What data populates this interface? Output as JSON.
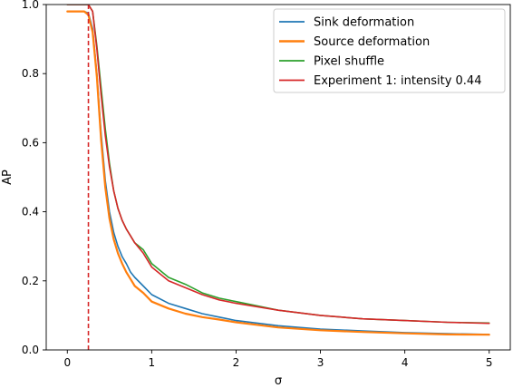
{
  "chart_data": {
    "type": "line",
    "xlabel": "σ",
    "ylabel": "AP",
    "xlim": [
      -0.25,
      5.25
    ],
    "ylim": [
      0.0,
      1.0
    ],
    "xticks": [
      0,
      1,
      2,
      3,
      4,
      5
    ],
    "xtick_labels": [
      "0",
      "1",
      "2",
      "3",
      "4",
      "5"
    ],
    "yticks": [
      0.0,
      0.2,
      0.4,
      0.6,
      0.8,
      1.0
    ],
    "ytick_labels": [
      "0.0",
      "0.2",
      "0.4",
      "0.6",
      "0.8",
      "1.0"
    ],
    "grid": false,
    "legend_position": "top-right",
    "vline": {
      "x": 0.25,
      "color": "#d62728",
      "style": "dashed"
    },
    "series": [
      {
        "name": "Sink deformation",
        "color": "#1f77b4",
        "x": [
          0,
          0.1,
          0.2,
          0.25,
          0.3,
          0.35,
          0.4,
          0.45,
          0.5,
          0.55,
          0.6,
          0.65,
          0.7,
          0.75,
          0.8,
          0.9,
          1.0,
          1.2,
          1.4,
          1.6,
          1.8,
          2.0,
          2.5,
          3.0,
          3.5,
          4.0,
          4.5,
          5.0
        ],
        "y": [
          0.98,
          0.98,
          0.98,
          0.975,
          0.93,
          0.8,
          0.63,
          0.49,
          0.4,
          0.34,
          0.3,
          0.27,
          0.25,
          0.225,
          0.21,
          0.185,
          0.16,
          0.135,
          0.12,
          0.105,
          0.095,
          0.085,
          0.07,
          0.06,
          0.055,
          0.05,
          0.047,
          0.045
        ]
      },
      {
        "name": "Source deformation",
        "color": "#ff7f0e",
        "x": [
          0,
          0.1,
          0.2,
          0.25,
          0.3,
          0.35,
          0.4,
          0.45,
          0.5,
          0.55,
          0.6,
          0.65,
          0.7,
          0.75,
          0.8,
          0.9,
          1.0,
          1.2,
          1.4,
          1.6,
          1.8,
          2.0,
          2.5,
          3.0,
          3.5,
          4.0,
          4.5,
          5.0
        ],
        "y": [
          0.98,
          0.98,
          0.98,
          0.97,
          0.92,
          0.79,
          0.61,
          0.47,
          0.38,
          0.32,
          0.28,
          0.25,
          0.225,
          0.205,
          0.185,
          0.165,
          0.14,
          0.12,
          0.105,
          0.095,
          0.088,
          0.08,
          0.065,
          0.057,
          0.052,
          0.048,
          0.045,
          0.044
        ]
      },
      {
        "name": "Pixel shuffle",
        "color": "#2ca02c",
        "x": [
          0,
          0.2,
          0.25,
          0.3,
          0.35,
          0.4,
          0.45,
          0.5,
          0.55,
          0.6,
          0.65,
          0.7,
          0.75,
          0.8,
          0.9,
          1.0,
          1.2,
          1.4,
          1.6,
          1.8,
          2.0,
          2.5,
          3.0,
          3.5,
          4.0,
          4.5,
          5.0
        ],
        "y": [
          1.0,
          1.0,
          1.0,
          0.98,
          0.88,
          0.76,
          0.64,
          0.54,
          0.46,
          0.41,
          0.375,
          0.35,
          0.33,
          0.31,
          0.29,
          0.25,
          0.21,
          0.19,
          0.165,
          0.15,
          0.14,
          0.115,
          0.1,
          0.09,
          0.085,
          0.08,
          0.078
        ]
      },
      {
        "name": "Experiment 1: intensity 0.44",
        "color": "#d62728",
        "x": [
          0,
          0.2,
          0.25,
          0.3,
          0.35,
          0.4,
          0.45,
          0.5,
          0.55,
          0.6,
          0.65,
          0.7,
          0.75,
          0.8,
          0.9,
          1.0,
          1.2,
          1.4,
          1.6,
          1.8,
          2.0,
          2.5,
          3.0,
          3.5,
          4.0,
          4.5,
          5.0
        ],
        "y": [
          1.0,
          1.0,
          1.0,
          0.98,
          0.87,
          0.74,
          0.62,
          0.53,
          0.46,
          0.41,
          0.375,
          0.35,
          0.33,
          0.31,
          0.28,
          0.24,
          0.2,
          0.18,
          0.16,
          0.145,
          0.135,
          0.115,
          0.1,
          0.09,
          0.085,
          0.08,
          0.077
        ]
      }
    ]
  }
}
